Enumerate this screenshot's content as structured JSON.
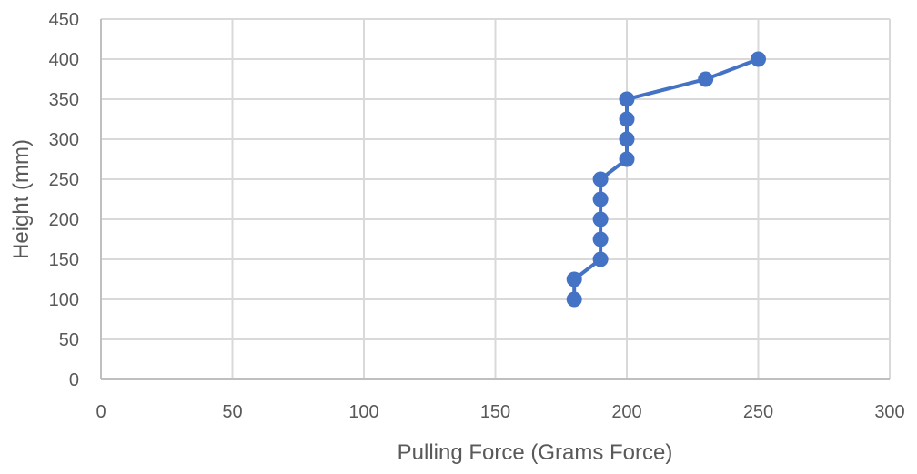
{
  "chart_data": {
    "type": "scatter",
    "title": "",
    "xlabel": "Pulling Force (Grams Force)",
    "ylabel": "Height (mm)",
    "xlim": [
      0,
      300
    ],
    "ylim": [
      0,
      450
    ],
    "xticks": [
      0,
      50,
      100,
      150,
      200,
      250,
      300
    ],
    "yticks": [
      0,
      50,
      100,
      150,
      200,
      250,
      300,
      350,
      400,
      450
    ],
    "grid": true,
    "legend": "none",
    "series": [
      {
        "color": "#4472c4",
        "marker": "circle",
        "lines": true,
        "x": [
          180,
          180,
          190,
          190,
          190,
          190,
          190,
          200,
          200,
          200,
          200,
          230,
          250
        ],
        "y": [
          100,
          125,
          150,
          175,
          200,
          225,
          250,
          275,
          300,
          325,
          350,
          375,
          400
        ]
      }
    ]
  }
}
